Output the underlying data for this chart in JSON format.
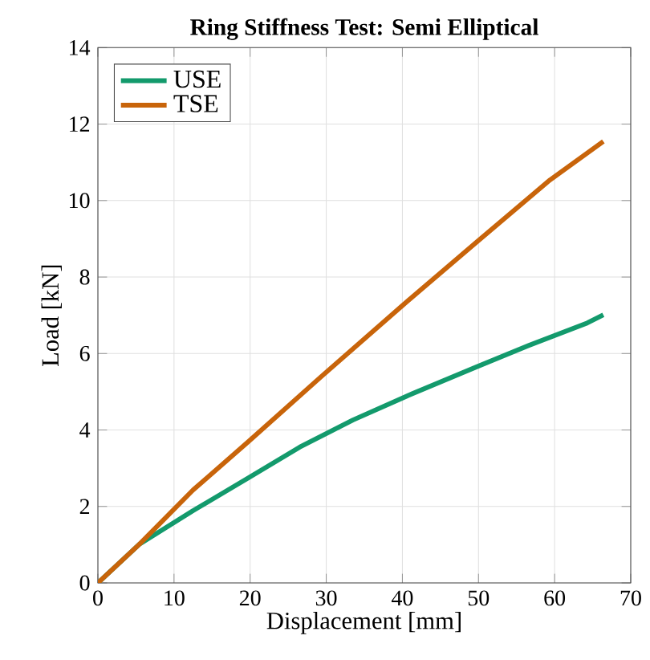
{
  "chart_data": {
    "type": "line",
    "title": "Ring Stiffness Test: Semi Elliptical",
    "xlabel": "Displacement [mm]",
    "ylabel": "Load [kN]",
    "xlim": [
      0,
      70
    ],
    "ylim": [
      0,
      14
    ],
    "xticks": [
      0,
      10,
      20,
      30,
      40,
      50,
      60,
      70
    ],
    "yticks": [
      0,
      2,
      4,
      6,
      8,
      10,
      12,
      14
    ],
    "grid": true,
    "legend": "top left",
    "marker": "none",
    "line_style": "solid",
    "series": [
      {
        "name": "USE",
        "color": "#139a6c",
        "x": [
          0,
          5.5,
          12.5,
          19.8,
          26.5,
          33.5,
          41.2,
          49.6,
          56.6,
          64.3,
          66.4
        ],
        "values": [
          0,
          1.02,
          1.89,
          2.75,
          3.55,
          4.26,
          4.94,
          5.64,
          6.21,
          6.8,
          7.01
        ]
      },
      {
        "name": "TSE",
        "color": "#c8640a",
        "x": [
          0,
          5.5,
          12.5,
          19.8,
          29.3,
          39.8,
          49.6,
          59.4,
          66.4
        ],
        "values": [
          0,
          1.02,
          2.43,
          3.7,
          5.39,
          7.22,
          8.89,
          10.54,
          11.55
        ]
      }
    ]
  }
}
